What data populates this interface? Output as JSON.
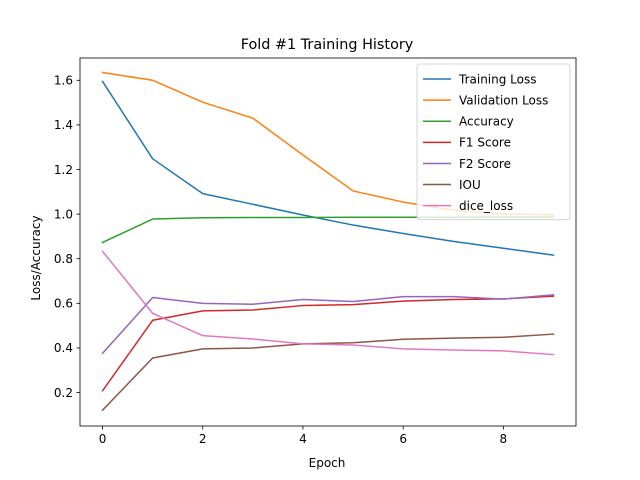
{
  "chart_data": {
    "type": "line",
    "title": "Fold #1 Training History",
    "xlabel": "Epoch",
    "ylabel": "Loss/Accuracy",
    "x": [
      0,
      1,
      2,
      3,
      4,
      5,
      6,
      7,
      8,
      9
    ],
    "xlim": [
      -0.45,
      9.45
    ],
    "ylim": [
      0.05,
      1.7
    ],
    "xticks": [
      0,
      2,
      4,
      6,
      8
    ],
    "xtick_labels": [
      "0",
      "2",
      "4",
      "6",
      "8"
    ],
    "yticks": [
      0.2,
      0.4,
      0.6,
      0.8,
      1.0,
      1.2,
      1.4,
      1.6
    ],
    "ytick_labels": [
      "0.2",
      "0.4",
      "0.6",
      "0.8",
      "1.0",
      "1.2",
      "1.4",
      "1.6"
    ],
    "grid": false,
    "legend_position": "top-right",
    "series": [
      {
        "name": "Training Loss",
        "color": "#1f77b4",
        "values": [
          1.595,
          1.248,
          1.092,
          1.044,
          0.996,
          0.951,
          0.913,
          0.878,
          0.847,
          0.816
        ]
      },
      {
        "name": "Validation Loss",
        "color": "#ff7f0e",
        "values": [
          1.635,
          1.6,
          1.502,
          1.43,
          1.265,
          1.104,
          1.054,
          1.018,
          1.0,
          0.997
        ]
      },
      {
        "name": "Accuracy",
        "color": "#2ca02c",
        "values": [
          0.873,
          0.978,
          0.984,
          0.985,
          0.985,
          0.986,
          0.986,
          0.986,
          0.987,
          0.987
        ]
      },
      {
        "name": "F1 Score",
        "color": "#d62728",
        "values": [
          0.208,
          0.524,
          0.566,
          0.57,
          0.59,
          0.594,
          0.61,
          0.617,
          0.62,
          0.632
        ]
      },
      {
        "name": "F2 Score",
        "color": "#9467bd",
        "values": [
          0.376,
          0.626,
          0.6,
          0.596,
          0.617,
          0.608,
          0.63,
          0.63,
          0.619,
          0.638
        ]
      },
      {
        "name": "IOU",
        "color": "#8c564b",
        "values": [
          0.121,
          0.355,
          0.396,
          0.4,
          0.418,
          0.423,
          0.439,
          0.444,
          0.448,
          0.462
        ]
      },
      {
        "name": "dice_loss",
        "color": "#e377c2",
        "values": [
          0.833,
          0.555,
          0.455,
          0.44,
          0.418,
          0.413,
          0.396,
          0.391,
          0.387,
          0.37
        ]
      }
    ]
  }
}
